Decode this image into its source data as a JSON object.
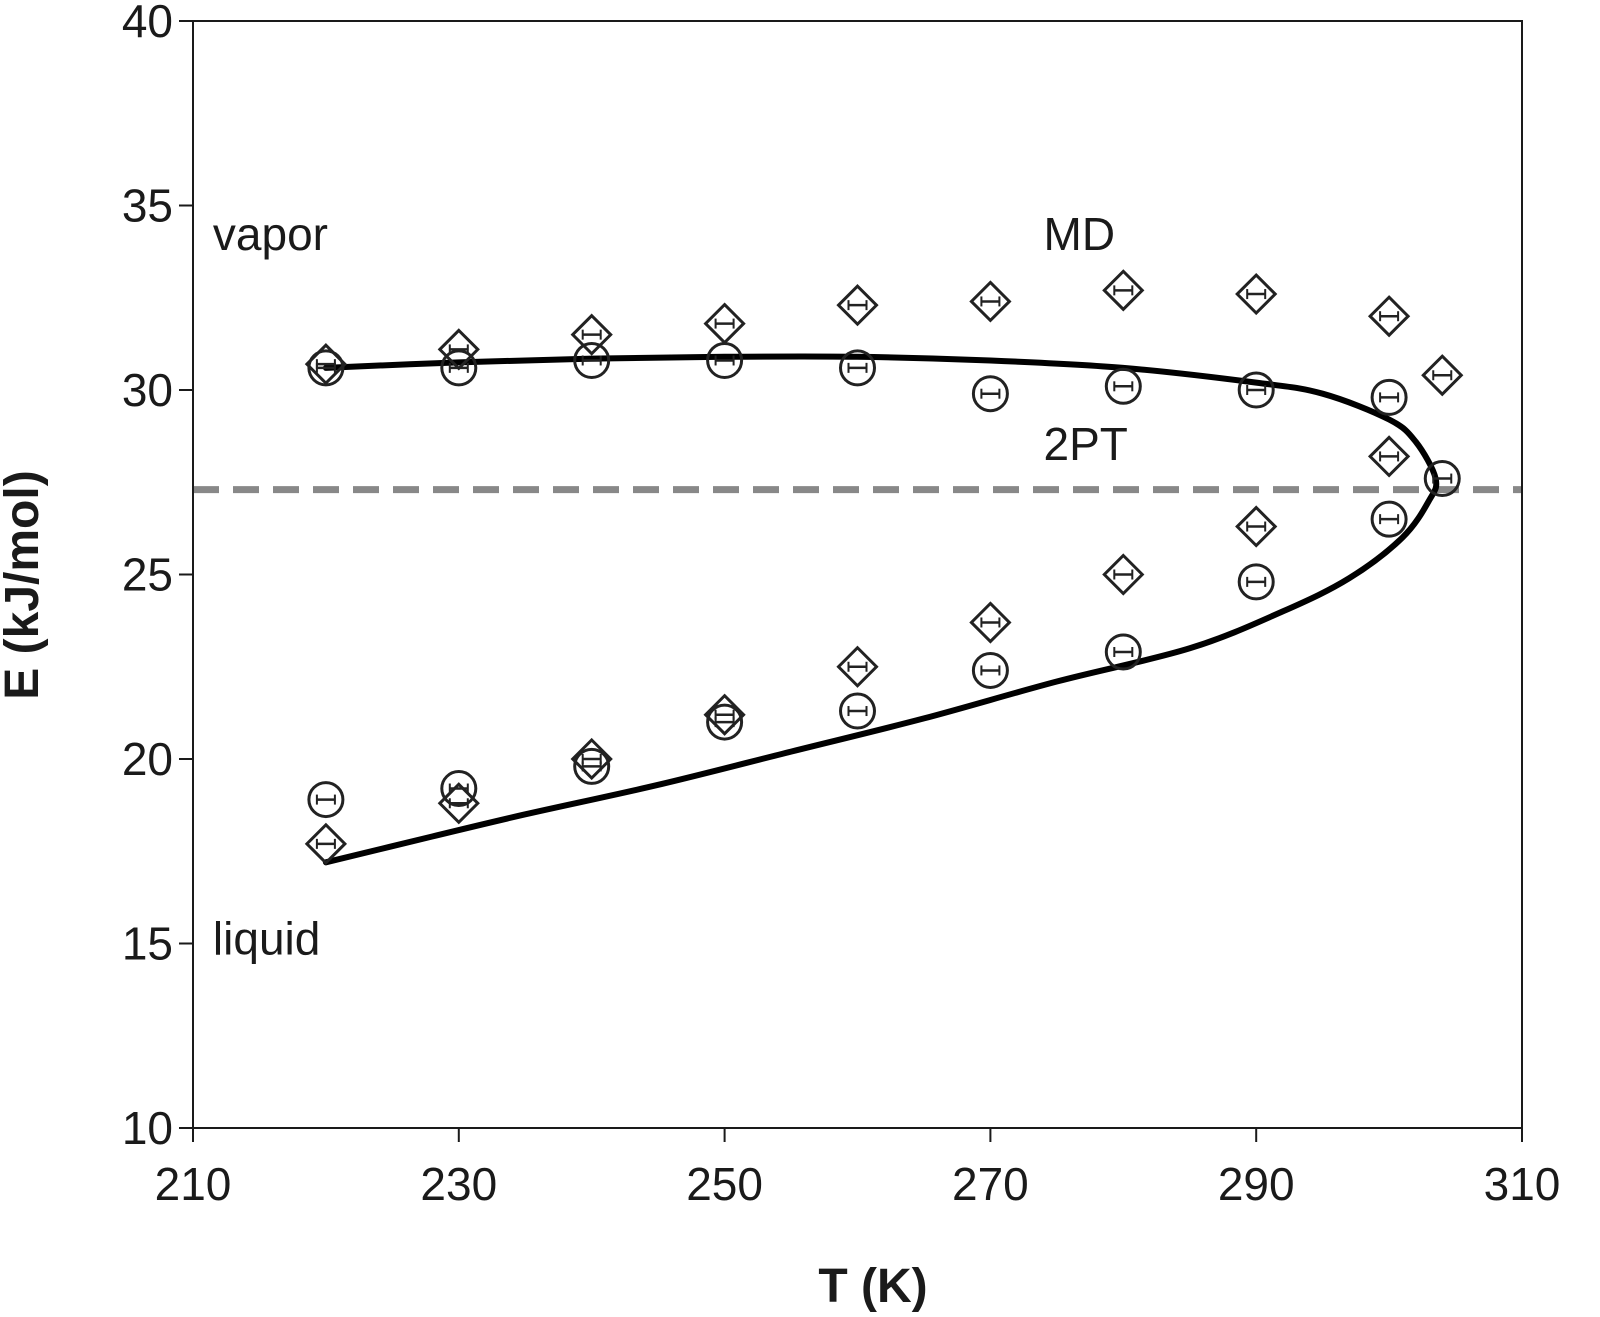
{
  "chart_data": {
    "type": "scatter",
    "title": "",
    "xlabel": "T (K)",
    "ylabel": "E (kJ/mol)",
    "xlim": [
      210,
      310
    ],
    "ylim": [
      10,
      40
    ],
    "xticks": [
      210,
      230,
      250,
      270,
      290,
      310
    ],
    "yticks": [
      10,
      15,
      20,
      25,
      30,
      35,
      40
    ],
    "grid": false,
    "annotations": [
      {
        "text": "vapor",
        "x": 211.5,
        "y": 33.8
      },
      {
        "text": "MD",
        "x": 274,
        "y": 33.8
      },
      {
        "text": "2PT",
        "x": 274,
        "y": 28.1
      },
      {
        "text": "liquid",
        "x": 211.5,
        "y": 14.7
      }
    ],
    "reference_line": {
      "y": 27.3,
      "style": "dashed",
      "color": "#888888"
    },
    "series": [
      {
        "marker": "diamond",
        "points": [
          [
            220,
            30.7
          ],
          [
            230,
            31.1
          ],
          [
            240,
            31.5
          ],
          [
            250,
            31.8
          ],
          [
            260,
            32.3
          ],
          [
            270,
            32.4
          ],
          [
            280,
            32.7
          ],
          [
            290,
            32.6
          ],
          [
            300,
            32.0
          ],
          [
            304,
            30.4
          ],
          [
            300,
            28.2
          ],
          [
            290,
            26.3
          ],
          [
            280,
            25.0
          ],
          [
            270,
            23.7
          ],
          [
            260,
            22.5
          ],
          [
            250,
            21.2
          ],
          [
            240,
            20.0
          ],
          [
            230,
            18.8
          ],
          [
            220,
            17.7
          ]
        ]
      },
      {
        "marker": "circle",
        "points": [
          [
            220,
            30.6
          ],
          [
            230,
            30.6
          ],
          [
            240,
            30.8
          ],
          [
            250,
            30.8
          ],
          [
            260,
            30.6
          ],
          [
            270,
            29.9
          ],
          [
            280,
            30.1
          ],
          [
            290,
            30.0
          ],
          [
            300,
            29.8
          ],
          [
            304,
            27.6
          ],
          [
            300,
            26.5
          ],
          [
            290,
            24.8
          ],
          [
            280,
            22.9
          ],
          [
            270,
            22.4
          ],
          [
            260,
            21.3
          ],
          [
            250,
            21.0
          ],
          [
            240,
            19.8
          ],
          [
            230,
            19.2
          ],
          [
            220,
            18.9
          ]
        ]
      },
      {
        "marker": "line",
        "color": "#000000",
        "points": [
          [
            220,
            30.6
          ],
          [
            230,
            30.75
          ],
          [
            240,
            30.85
          ],
          [
            250,
            30.9
          ],
          [
            260,
            30.9
          ],
          [
            270,
            30.8
          ],
          [
            280,
            30.6
          ],
          [
            290,
            30.2
          ],
          [
            295,
            29.9
          ],
          [
            300,
            29.2
          ],
          [
            302,
            28.6
          ],
          [
            303.5,
            27.6
          ],
          [
            303,
            27.0
          ],
          [
            301,
            26.0
          ],
          [
            297,
            24.9
          ],
          [
            292,
            24.0
          ],
          [
            285,
            23.0
          ],
          [
            275,
            22.1
          ],
          [
            265,
            21.1
          ],
          [
            255,
            20.2
          ],
          [
            245,
            19.3
          ],
          [
            235,
            18.5
          ],
          [
            228,
            17.9
          ],
          [
            220,
            17.2
          ]
        ]
      }
    ]
  }
}
